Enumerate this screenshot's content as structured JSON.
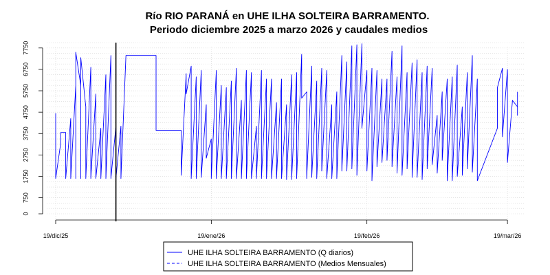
{
  "chart_data": {
    "type": "line",
    "title": "Río RIO PARANÁ en UHE ILHA SOLTEIRA  BARRAMENTO.",
    "subtitle": "Periodo diciembre 2025 a marzo 2026 y caudales medios",
    "xlabel": "",
    "ylabel": "",
    "x_ticks": [
      {
        "date": "2025-12-19",
        "label": "19/dic/25"
      },
      {
        "date": "2026-01-19",
        "label": "19/ene/26"
      },
      {
        "date": "2026-02-19",
        "label": "19/feb/26"
      },
      {
        "date": "2026-03-19",
        "label": "19/mar/26"
      }
    ],
    "xlim": [
      "2025-12-19",
      "2026-03-22"
    ],
    "ylim": [
      0,
      8000
    ],
    "y_ticks": [
      0,
      750,
      1750,
      2750,
      3750,
      4750,
      5750,
      6750,
      7750
    ],
    "grid": true,
    "vertical_marker_date": "2025-12-31",
    "legend_position": "bottom",
    "colors": {
      "series": "#0000ff",
      "marker": "#000000",
      "grid": "#d3d3d3"
    },
    "series": [
      {
        "name": "UHE ILHA SOLTEIRA  BARRAMENTO (Q diarios)",
        "style": "solid",
        "points": [
          [
            "2025-12-19",
            4700
          ],
          [
            "2025-12-19",
            1650
          ],
          [
            "2025-12-20",
            3300
          ],
          [
            "2025-12-20",
            3800
          ],
          [
            "2025-12-21",
            3800
          ],
          [
            "2025-12-21",
            1650
          ],
          [
            "2025-12-22",
            4450
          ],
          [
            "2025-12-22",
            1650
          ],
          [
            "2025-12-23",
            6000
          ],
          [
            "2025-12-23",
            1650
          ],
          [
            "2025-12-23",
            7550
          ],
          [
            "2025-12-24",
            6000
          ],
          [
            "2025-12-24",
            1650
          ],
          [
            "2025-12-24",
            7300
          ],
          [
            "2025-12-25",
            5000
          ],
          [
            "2025-12-25",
            1650
          ],
          [
            "2025-12-26",
            6850
          ],
          [
            "2025-12-26",
            1650
          ],
          [
            "2025-12-27",
            5600
          ],
          [
            "2025-12-27",
            1650
          ],
          [
            "2025-12-28",
            4000
          ],
          [
            "2025-12-28",
            1650
          ],
          [
            "2025-12-29",
            6500
          ],
          [
            "2025-12-29",
            1650
          ],
          [
            "2025-12-30",
            7400
          ],
          [
            "2025-12-30",
            1650
          ],
          [
            "2025-12-31",
            4100
          ],
          [
            "2025-12-31",
            1650
          ],
          [
            "2026-01-01",
            4100
          ],
          [
            "2026-01-01",
            1650
          ],
          [
            "2026-01-02",
            7400
          ],
          [
            "2026-01-08",
            7400
          ],
          [
            "2026-01-08",
            3900
          ],
          [
            "2026-01-13",
            3900
          ],
          [
            "2026-01-13",
            1800
          ],
          [
            "2026-01-14",
            6550
          ],
          [
            "2026-01-14",
            5600
          ],
          [
            "2026-01-15",
            6900
          ],
          [
            "2026-01-15",
            1650
          ],
          [
            "2026-01-16",
            6400
          ],
          [
            "2026-01-16",
            1650
          ],
          [
            "2026-01-17",
            6700
          ],
          [
            "2026-01-17",
            1700
          ],
          [
            "2026-01-18",
            5100
          ],
          [
            "2026-01-18",
            2600
          ],
          [
            "2026-01-19",
            3500
          ],
          [
            "2026-01-19",
            1650
          ],
          [
            "2026-01-20",
            6700
          ],
          [
            "2026-01-20",
            1650
          ],
          [
            "2026-01-21",
            6000
          ],
          [
            "2026-01-21",
            1650
          ],
          [
            "2026-01-22",
            5900
          ],
          [
            "2026-01-22",
            1650
          ],
          [
            "2026-01-23",
            6200
          ],
          [
            "2026-01-23",
            1650
          ],
          [
            "2026-01-24",
            6800
          ],
          [
            "2026-01-24",
            1650
          ],
          [
            "2026-01-25",
            5300
          ],
          [
            "2026-01-25",
            1650
          ],
          [
            "2026-01-26",
            6700
          ],
          [
            "2026-01-26",
            1650
          ],
          [
            "2026-01-27",
            6600
          ],
          [
            "2026-01-27",
            1650
          ],
          [
            "2026-01-28",
            4100
          ],
          [
            "2026-01-28",
            1650
          ],
          [
            "2026-01-29",
            6700
          ],
          [
            "2026-01-29",
            1650
          ],
          [
            "2026-01-30",
            6300
          ],
          [
            "2026-01-30",
            1650
          ],
          [
            "2026-01-31",
            6300
          ],
          [
            "2026-01-31",
            1650
          ],
          [
            "2026-02-01",
            5200
          ],
          [
            "2026-02-01",
            1650
          ],
          [
            "2026-02-02",
            6300
          ],
          [
            "2026-02-02",
            1650
          ],
          [
            "2026-02-03",
            5100
          ],
          [
            "2026-02-03",
            1600
          ],
          [
            "2026-02-04",
            6500
          ],
          [
            "2026-02-04",
            1600
          ],
          [
            "2026-02-05",
            6600
          ],
          [
            "2026-02-05",
            1650
          ],
          [
            "2026-02-06",
            7450
          ],
          [
            "2026-02-06",
            5400
          ],
          [
            "2026-02-07",
            5700
          ],
          [
            "2026-02-07",
            1650
          ],
          [
            "2026-02-08",
            6900
          ],
          [
            "2026-02-08",
            1700
          ],
          [
            "2026-02-09",
            6200
          ],
          [
            "2026-02-09",
            1650
          ],
          [
            "2026-02-10",
            6800
          ],
          [
            "2026-02-10",
            2000
          ],
          [
            "2026-02-11",
            6700
          ],
          [
            "2026-02-11",
            1650
          ],
          [
            "2026-02-12",
            5100
          ],
          [
            "2026-02-12",
            1650
          ],
          [
            "2026-02-13",
            5700
          ],
          [
            "2026-02-13",
            1650
          ],
          [
            "2026-02-14",
            7400
          ],
          [
            "2026-02-14",
            2000
          ],
          [
            "2026-02-15",
            7100
          ],
          [
            "2026-02-15",
            2000
          ],
          [
            "2026-02-16",
            7850
          ],
          [
            "2026-02-16",
            2100
          ],
          [
            "2026-02-17",
            7900
          ],
          [
            "2026-02-17",
            1800
          ],
          [
            "2026-02-18",
            7950
          ],
          [
            "2026-02-18",
            4000
          ],
          [
            "2026-02-19",
            6700
          ],
          [
            "2026-02-19",
            2000
          ],
          [
            "2026-02-20",
            6800
          ],
          [
            "2026-02-20",
            1550
          ],
          [
            "2026-02-21",
            6700
          ],
          [
            "2026-02-21",
            2200
          ],
          [
            "2026-02-22",
            6300
          ],
          [
            "2026-02-22",
            2400
          ],
          [
            "2026-02-23",
            6300
          ],
          [
            "2026-02-23",
            2500
          ],
          [
            "2026-02-24",
            7600
          ],
          [
            "2026-02-24",
            2200
          ],
          [
            "2026-02-25",
            6400
          ],
          [
            "2026-02-25",
            1900
          ],
          [
            "2026-02-26",
            7850
          ],
          [
            "2026-02-26",
            1800
          ],
          [
            "2026-02-27",
            6600
          ],
          [
            "2026-02-27",
            2100
          ],
          [
            "2026-02-28",
            7050
          ],
          [
            "2026-02-28",
            1700
          ],
          [
            "2026-03-01",
            7200
          ],
          [
            "2026-03-01",
            1700
          ],
          [
            "2026-03-02",
            6600
          ],
          [
            "2026-03-02",
            1600
          ],
          [
            "2026-03-03",
            6900
          ],
          [
            "2026-03-03",
            2100
          ],
          [
            "2026-03-04",
            6800
          ],
          [
            "2026-03-04",
            2300
          ],
          [
            "2026-03-05",
            4600
          ],
          [
            "2026-03-05",
            1900
          ],
          [
            "2026-03-06",
            5700
          ],
          [
            "2026-03-06",
            2500
          ],
          [
            "2026-03-07",
            6300
          ],
          [
            "2026-03-07",
            1550
          ],
          [
            "2026-03-08",
            6400
          ],
          [
            "2026-03-08",
            1550
          ],
          [
            "2026-03-09",
            6950
          ],
          [
            "2026-03-09",
            1750
          ],
          [
            "2026-03-10",
            5000
          ],
          [
            "2026-03-10",
            1800
          ],
          [
            "2026-03-11",
            6600
          ],
          [
            "2026-03-11",
            2100
          ],
          [
            "2026-03-12",
            7400
          ],
          [
            "2026-03-12",
            1950
          ],
          [
            "2026-03-13",
            6300
          ],
          [
            "2026-03-13",
            1550
          ],
          [
            "2026-03-17",
            4000
          ],
          [
            "2026-03-17",
            5900
          ],
          [
            "2026-03-18",
            6800
          ],
          [
            "2026-03-18",
            3600
          ],
          [
            "2026-03-19",
            6750
          ],
          [
            "2026-03-19",
            2400
          ],
          [
            "2026-03-20",
            5300
          ],
          [
            "2026-03-21",
            5000
          ],
          [
            "2026-03-21",
            4600
          ],
          [
            "2026-03-21",
            5700
          ]
        ]
      },
      {
        "name": "UHE ILHA SOLTEIRA  BARRAMENTO (Medios Mensuales)",
        "style": "dashed",
        "points": []
      }
    ]
  }
}
